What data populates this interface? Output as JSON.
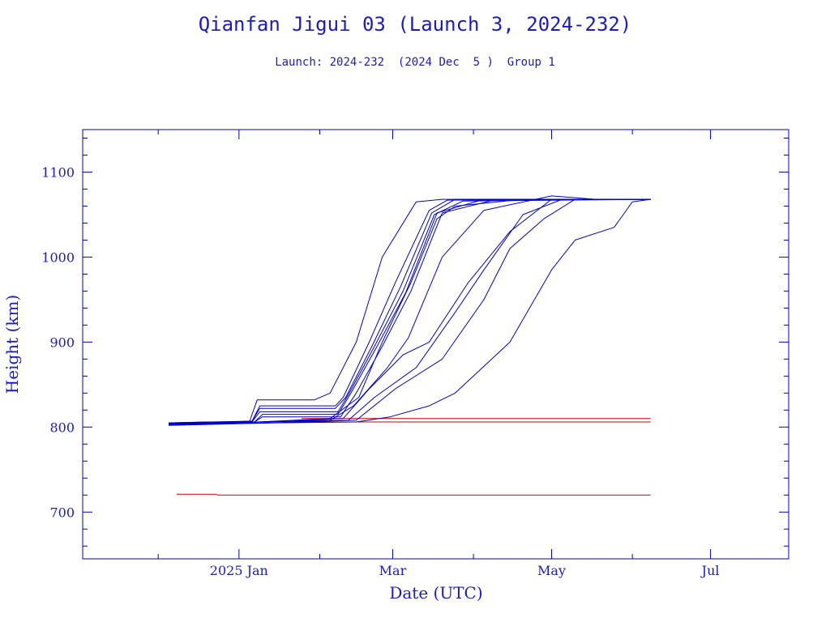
{
  "colors": {
    "axis": "#0000cc",
    "text": "#1a1acc",
    "series_up": "#0000cc",
    "series_flat": "#cc0000",
    "background": "#ffffff"
  },
  "chart_data": {
    "type": "line",
    "title": "Qianfan Jigui 03 (Launch 3, 2024-232)",
    "subtitle": "Launch: 2024-232  (2024 Dec  5 )  Group 1",
    "xlabel": "Date (UTC)",
    "ylabel": "Height (km)",
    "x_type": "date",
    "xlim": [
      "2024-11-02",
      "2025-07-31"
    ],
    "ylim": [
      645,
      1150
    ],
    "x_ticks": [
      {
        "date": "2025-01-01",
        "label": "2025 Jan"
      },
      {
        "date": "2025-03-01",
        "label": "Mar"
      },
      {
        "date": "2025-05-01",
        "label": "May"
      },
      {
        "date": "2025-07-01",
        "label": "Jul"
      }
    ],
    "y_ticks": [
      700,
      800,
      900,
      1000,
      1100
    ],
    "grid": false,
    "series_raising": [
      {
        "points": [
          [
            "2024-12-05",
            805
          ],
          [
            "2024-12-20",
            806
          ],
          [
            "2025-01-05",
            806
          ],
          [
            "2025-01-08",
            832
          ],
          [
            "2025-01-30",
            832
          ],
          [
            "2025-02-05",
            840
          ],
          [
            "2025-02-15",
            900
          ],
          [
            "2025-02-25",
            1000
          ],
          [
            "2025-03-10",
            1065
          ],
          [
            "2025-03-20",
            1068
          ],
          [
            "2025-06-08",
            1068
          ]
        ]
      },
      {
        "points": [
          [
            "2024-12-05",
            804
          ],
          [
            "2025-01-06",
            807
          ],
          [
            "2025-01-09",
            825
          ],
          [
            "2025-02-07",
            825
          ],
          [
            "2025-02-10",
            835
          ],
          [
            "2025-02-20",
            900
          ],
          [
            "2025-03-02",
            970
          ],
          [
            "2025-03-15",
            1055
          ],
          [
            "2025-03-22",
            1067
          ],
          [
            "2025-06-08",
            1068
          ]
        ]
      },
      {
        "points": [
          [
            "2024-12-05",
            805
          ],
          [
            "2025-01-06",
            807
          ],
          [
            "2025-01-09",
            822
          ],
          [
            "2025-02-07",
            822
          ],
          [
            "2025-02-11",
            835
          ],
          [
            "2025-02-21",
            895
          ],
          [
            "2025-03-04",
            965
          ],
          [
            "2025-03-16",
            1052
          ],
          [
            "2025-03-25",
            1068
          ],
          [
            "2025-06-08",
            1068
          ]
        ]
      },
      {
        "points": [
          [
            "2024-12-05",
            804
          ],
          [
            "2025-01-06",
            806
          ],
          [
            "2025-01-09",
            818
          ],
          [
            "2025-02-08",
            818
          ],
          [
            "2025-02-12",
            838
          ],
          [
            "2025-02-22",
            895
          ],
          [
            "2025-03-05",
            960
          ],
          [
            "2025-03-17",
            1050
          ],
          [
            "2025-03-28",
            1066
          ],
          [
            "2025-06-08",
            1068
          ]
        ]
      },
      {
        "points": [
          [
            "2024-12-05",
            804
          ],
          [
            "2025-01-07",
            806
          ],
          [
            "2025-01-10",
            815
          ],
          [
            "2025-02-08",
            815
          ],
          [
            "2025-02-13",
            840
          ],
          [
            "2025-02-23",
            895
          ],
          [
            "2025-03-06",
            958
          ],
          [
            "2025-03-18",
            1052
          ],
          [
            "2025-04-05",
            1068
          ],
          [
            "2025-06-08",
            1068
          ]
        ]
      },
      {
        "points": [
          [
            "2024-12-05",
            803
          ],
          [
            "2025-01-07",
            806
          ],
          [
            "2025-01-10",
            812
          ],
          [
            "2025-02-09",
            812
          ],
          [
            "2025-02-15",
            840
          ],
          [
            "2025-02-25",
            895
          ],
          [
            "2025-03-08",
            960
          ],
          [
            "2025-03-20",
            1052
          ],
          [
            "2025-04-10",
            1068
          ],
          [
            "2025-06-08",
            1068
          ]
        ]
      },
      {
        "points": [
          [
            "2024-12-05",
            804
          ],
          [
            "2025-01-08",
            806
          ],
          [
            "2025-02-05",
            810
          ],
          [
            "2025-02-16",
            835
          ],
          [
            "2025-02-25",
            900
          ],
          [
            "2025-03-08",
            970
          ],
          [
            "2025-03-18",
            1045
          ],
          [
            "2025-03-25",
            1060
          ],
          [
            "2025-04-20",
            1068
          ],
          [
            "2025-06-08",
            1068
          ]
        ]
      },
      {
        "points": [
          [
            "2024-12-05",
            804
          ],
          [
            "2025-01-08",
            806
          ],
          [
            "2025-02-05",
            808
          ],
          [
            "2025-02-14",
            825
          ],
          [
            "2025-02-27",
            870
          ],
          [
            "2025-03-07",
            905
          ],
          [
            "2025-03-20",
            1000
          ],
          [
            "2025-04-05",
            1055
          ],
          [
            "2025-05-01",
            1072
          ],
          [
            "2025-05-18",
            1068
          ],
          [
            "2025-06-08",
            1068
          ]
        ]
      },
      {
        "points": [
          [
            "2024-12-05",
            804
          ],
          [
            "2025-01-10",
            806
          ],
          [
            "2025-02-10",
            810
          ],
          [
            "2025-02-20",
            845
          ],
          [
            "2025-03-05",
            885
          ],
          [
            "2025-03-15",
            900
          ],
          [
            "2025-03-30",
            970
          ],
          [
            "2025-04-15",
            1030
          ],
          [
            "2025-05-01",
            1068
          ],
          [
            "2025-06-08",
            1068
          ]
        ]
      },
      {
        "points": [
          [
            "2024-12-05",
            803
          ],
          [
            "2025-01-10",
            806
          ],
          [
            "2025-02-12",
            808
          ],
          [
            "2025-02-22",
            835
          ],
          [
            "2025-03-10",
            870
          ],
          [
            "2025-03-25",
            935
          ],
          [
            "2025-04-05",
            985
          ],
          [
            "2025-04-20",
            1050
          ],
          [
            "2025-05-05",
            1068
          ],
          [
            "2025-06-08",
            1068
          ]
        ]
      },
      {
        "points": [
          [
            "2024-12-05",
            803
          ],
          [
            "2025-01-12",
            805
          ],
          [
            "2025-02-15",
            808
          ],
          [
            "2025-03-02",
            845
          ],
          [
            "2025-03-20",
            880
          ],
          [
            "2025-04-05",
            950
          ],
          [
            "2025-04-15",
            1010
          ],
          [
            "2025-04-28",
            1045
          ],
          [
            "2025-05-10",
            1068
          ],
          [
            "2025-06-08",
            1068
          ]
        ]
      },
      {
        "points": [
          [
            "2024-12-05",
            802
          ],
          [
            "2025-01-15",
            805
          ],
          [
            "2025-02-15",
            806
          ],
          [
            "2025-02-28",
            812
          ],
          [
            "2025-03-15",
            825
          ],
          [
            "2025-03-25",
            840
          ],
          [
            "2025-04-15",
            900
          ],
          [
            "2025-05-01",
            985
          ],
          [
            "2025-05-10",
            1020
          ],
          [
            "2025-05-25",
            1035
          ],
          [
            "2025-06-01",
            1065
          ],
          [
            "2025-06-08",
            1068
          ]
        ]
      }
    ],
    "series_flat": [
      {
        "points": [
          [
            "2024-12-08",
            721
          ],
          [
            "2024-12-23",
            721
          ],
          [
            "2024-12-24",
            720
          ],
          [
            "2025-06-08",
            720
          ]
        ]
      },
      {
        "points": [
          [
            "2025-01-25",
            810
          ],
          [
            "2025-06-08",
            810
          ]
        ]
      },
      {
        "points": [
          [
            "2025-01-25",
            806
          ],
          [
            "2025-06-08",
            806
          ]
        ]
      }
    ]
  }
}
